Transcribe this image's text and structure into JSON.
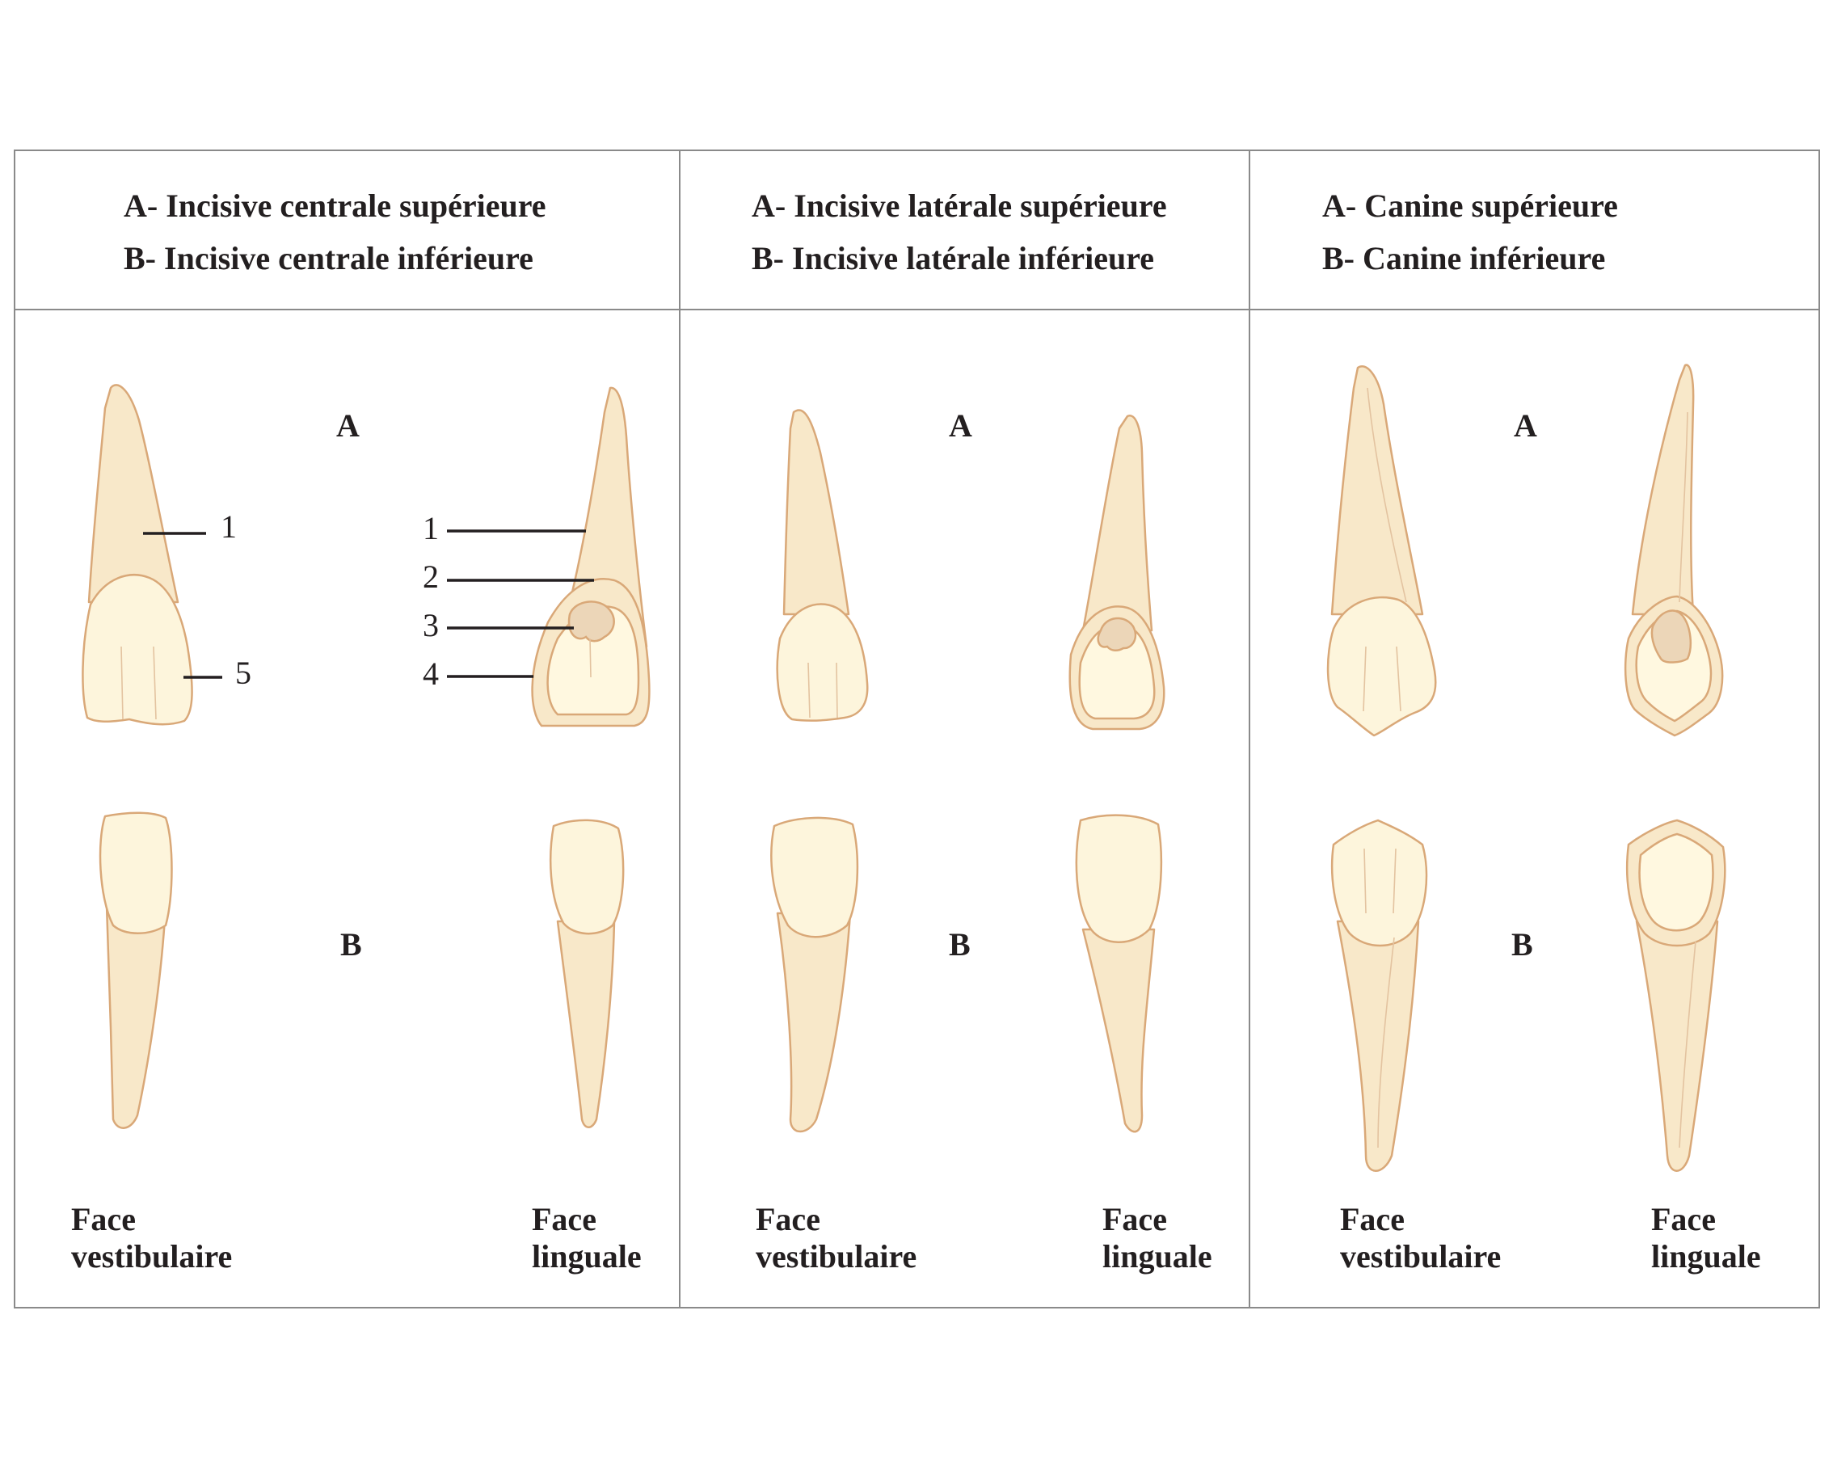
{
  "panels": [
    {
      "header_a": "A- Incisive centrale supérieure",
      "header_b": "B- Incisive centrale inférieure",
      "label_a": "A",
      "label_b": "B",
      "face_left_1": "Face",
      "face_left_2": "vestibulaire",
      "face_right_1": "Face",
      "face_right_2": "linguale"
    },
    {
      "header_a": "A- Incisive latérale supérieure",
      "header_b": "B- Incisive latérale inférieure",
      "label_a": "A",
      "label_b": "B",
      "face_left_1": "Face",
      "face_left_2": "vestibulaire",
      "face_right_1": "Face",
      "face_right_2": "linguale"
    },
    {
      "header_a": "A- Canine supérieure",
      "header_b": "B- Canine inférieure",
      "label_a": "A",
      "label_b": "B",
      "face_left_1": "Face",
      "face_left_2": "vestibulaire",
      "face_right_1": "Face",
      "face_right_2": "linguale"
    }
  ],
  "callouts": {
    "vestibular_1": "1",
    "vestibular_5": "5",
    "lingual_1": "1",
    "lingual_2": "2",
    "lingual_3": "3",
    "lingual_4": "4"
  },
  "colors": {
    "root": "#f8e8c9",
    "crown": "#fdf5dc",
    "outline": "#d9a878",
    "cingulum": "#ecd6b8",
    "frame": "#8a8a8a"
  }
}
